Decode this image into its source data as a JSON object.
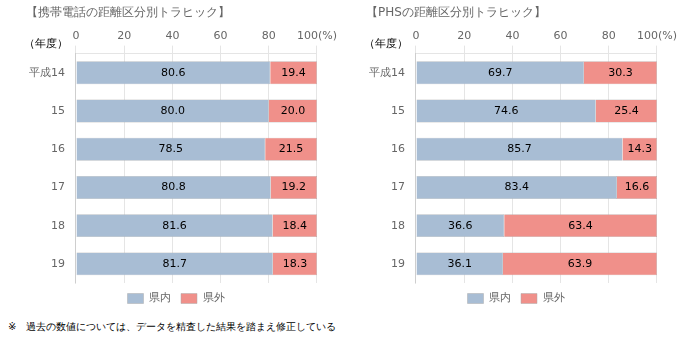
{
  "chart_data": [
    {
      "type": "bar",
      "orientation": "horizontal",
      "stacked": true,
      "title": "【携帯電話の距離区分別トラヒック】",
      "ylabel": "（年度）",
      "categories": [
        "平成14",
        "15",
        "16",
        "17",
        "18",
        "19"
      ],
      "series": [
        {
          "name": "県内",
          "color": "#a8bdd4",
          "values": [
            80.6,
            80.0,
            78.5,
            80.8,
            81.6,
            81.7
          ],
          "value_labels": [
            "80.6",
            "80.0",
            "78.5",
            "80.8",
            "81.6",
            "81.7"
          ]
        },
        {
          "name": "県外",
          "color": "#f0908a",
          "values": [
            19.4,
            20.0,
            21.5,
            19.2,
            18.4,
            18.3
          ],
          "value_labels": [
            "19.4",
            "20.0",
            "21.5",
            "19.2",
            "18.4",
            "18.3"
          ]
        }
      ],
      "xlim": [
        0,
        100
      ],
      "xticks": [
        0,
        20,
        40,
        60,
        80,
        {
          "value": 100,
          "label": "100(%)"
        }
      ],
      "grid": true,
      "legend": "bottom",
      "data_labels": true
    },
    {
      "type": "bar",
      "orientation": "horizontal",
      "stacked": true,
      "title": "【PHSの距離区分別トラヒック】",
      "ylabel": "（年度）",
      "categories": [
        "平成14",
        "15",
        "16",
        "17",
        "18",
        "19"
      ],
      "series": [
        {
          "name": "県内",
          "color": "#a8bdd4",
          "values": [
            69.7,
            74.6,
            85.7,
            83.4,
            36.6,
            36.1
          ],
          "value_labels": [
            "69.7",
            "74.6",
            "85.7",
            "83.4",
            "36.6",
            "36.1"
          ]
        },
        {
          "name": "県外",
          "color": "#f0908a",
          "values": [
            30.3,
            25.4,
            14.3,
            16.6,
            63.4,
            63.9
          ],
          "value_labels": [
            "30.3",
            "25.4",
            "14.3",
            "16.6",
            "63.4",
            "63.9"
          ]
        }
      ],
      "xlim": [
        0,
        100
      ],
      "xticks": [
        0,
        20,
        40,
        60,
        80,
        {
          "value": 100,
          "label": "100(%)"
        }
      ],
      "grid": true,
      "legend": "bottom",
      "data_labels": true
    }
  ],
  "footnote": "※　過去の数値については、データを精査した結果を踏まえ修正している"
}
